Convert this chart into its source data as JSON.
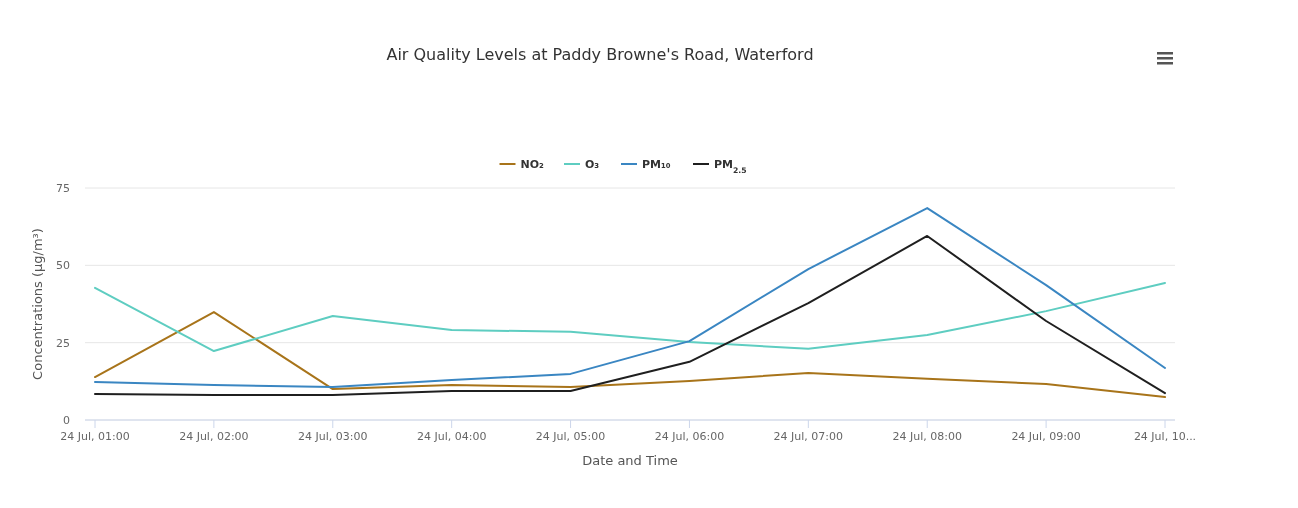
{
  "chart_data": {
    "type": "line",
    "title": "Air Quality Levels at Paddy Browne's Road, Waterford",
    "xlabel": "Date and Time",
    "ylabel": "Concentrations (µg/m³)",
    "categories": [
      "24 Jul, 01:00",
      "24 Jul, 02:00",
      "24 Jul, 03:00",
      "24 Jul, 04:00",
      "24 Jul, 05:00",
      "24 Jul, 06:00",
      "24 Jul, 07:00",
      "24 Jul, 08:00",
      "24 Jul, 09:00",
      "24 Jul, 10..."
    ],
    "series": [
      {
        "name": "NO₂",
        "color": "#a8741a",
        "values": [
          13.9,
          34.9,
          10,
          11.3,
          10.7,
          12.6,
          15.2,
          13.3,
          11.6,
          7.4
        ]
      },
      {
        "name": "O₃",
        "color": "#5ecdc1",
        "values": [
          42.7,
          22.3,
          33.6,
          29.1,
          28.5,
          25.2,
          23,
          27.5,
          35.2,
          44.3
        ]
      },
      {
        "name": "PM₁₀",
        "color": "#3a86c2",
        "values": [
          12.3,
          11.3,
          10.7,
          12.9,
          14.9,
          25.5,
          48.8,
          68.5,
          43.6,
          16.8
        ]
      },
      {
        "name": "PM$_{2.5}$",
        "color": "#1f1f1f",
        "values": [
          8.4,
          8.1,
          8.1,
          9.4,
          9.4,
          18.8,
          37.8,
          59.5,
          32,
          8.7
        ]
      }
    ],
    "ylim": [
      0,
      75
    ],
    "yticks": [
      0,
      25,
      50,
      75
    ],
    "grid": "y",
    "legend": "top",
    "marker": "none",
    "line_style": "solid"
  }
}
